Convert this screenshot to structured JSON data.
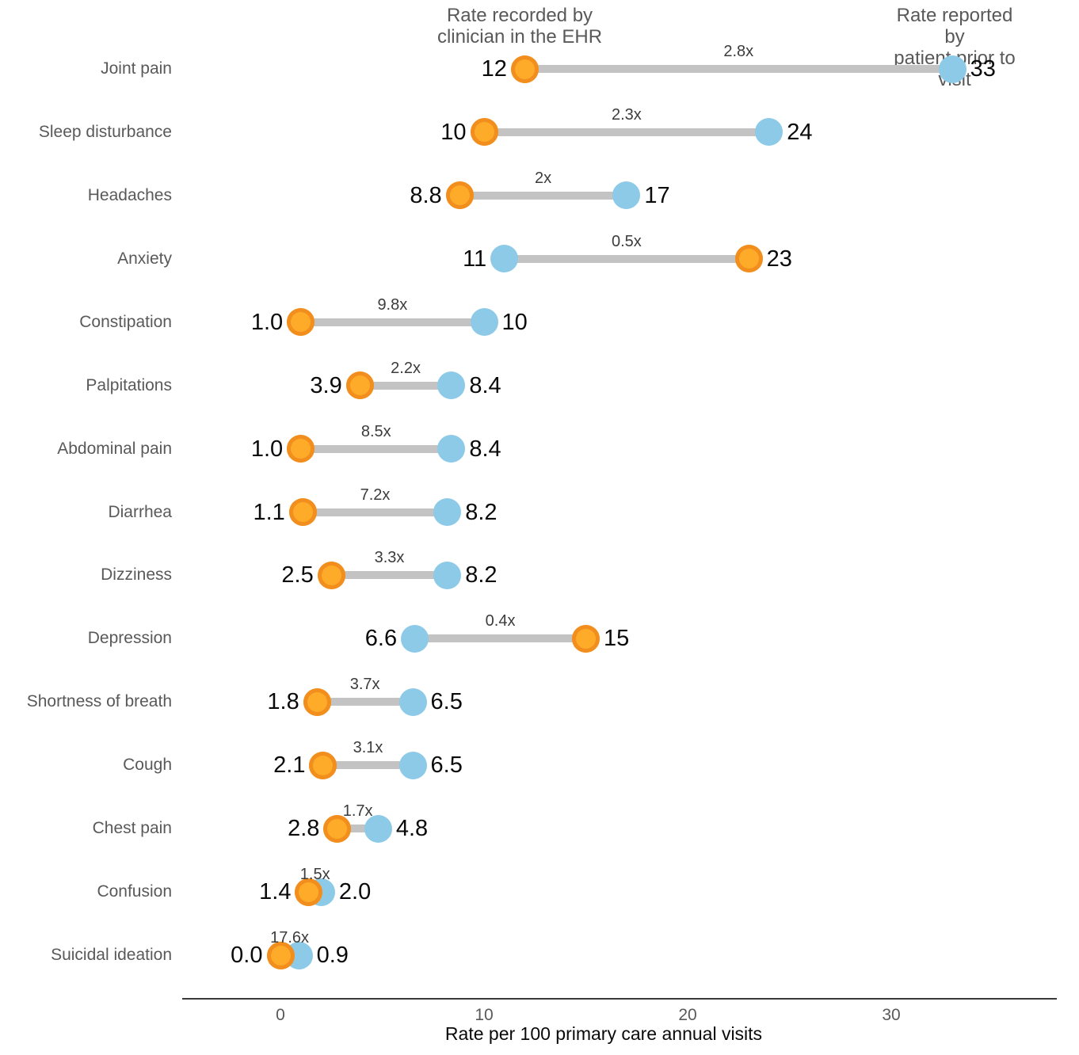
{
  "header": {
    "left": "Rate recorded by\nclinician in the EHR",
    "right": "Rate reported by\npatient prior to visit"
  },
  "chart_data": {
    "type": "dumbbell",
    "title": "",
    "xlabel": "Rate per 100 primary care annual visits",
    "ylabel": "",
    "x_ticks": [
      "0",
      "10",
      "20",
      "30"
    ],
    "x_tick_values": [
      0,
      10,
      20,
      30
    ],
    "xlim": [
      -4.8,
      38.2
    ],
    "grid": false,
    "legend_position": "column headers above first row",
    "series": [
      {
        "name": "Rate recorded by clinician in the EHR",
        "key": "clinician",
        "color": "#F28E1D"
      },
      {
        "name": "Rate reported by patient prior to visit",
        "key": "patient",
        "color": "#8CCAE7"
      }
    ],
    "rows": [
      {
        "label": "Joint pain",
        "clinician": 12,
        "clinician_display": "12",
        "patient": 33,
        "patient_display": "33",
        "ratio": "2.8x"
      },
      {
        "label": "Sleep disturbance",
        "clinician": 10,
        "clinician_display": "10",
        "patient": 24,
        "patient_display": "24",
        "ratio": "2.3x"
      },
      {
        "label": "Headaches",
        "clinician": 8.8,
        "clinician_display": "8.8",
        "patient": 17,
        "patient_display": "17",
        "ratio": "2x"
      },
      {
        "label": "Anxiety",
        "clinician": 23,
        "clinician_display": "23",
        "patient": 11,
        "patient_display": "11",
        "ratio": "0.5x"
      },
      {
        "label": "Constipation",
        "clinician": 1.0,
        "clinician_display": "1.0",
        "patient": 10,
        "patient_display": "10",
        "ratio": "9.8x"
      },
      {
        "label": "Palpitations",
        "clinician": 3.9,
        "clinician_display": "3.9",
        "patient": 8.4,
        "patient_display": "8.4",
        "ratio": "2.2x"
      },
      {
        "label": "Abdominal pain",
        "clinician": 1.0,
        "clinician_display": "1.0",
        "patient": 8.4,
        "patient_display": "8.4",
        "ratio": "8.5x"
      },
      {
        "label": "Diarrhea",
        "clinician": 1.1,
        "clinician_display": "1.1",
        "patient": 8.2,
        "patient_display": "8.2",
        "ratio": "7.2x"
      },
      {
        "label": "Dizziness",
        "clinician": 2.5,
        "clinician_display": "2.5",
        "patient": 8.2,
        "patient_display": "8.2",
        "ratio": "3.3x"
      },
      {
        "label": "Depression",
        "clinician": 15,
        "clinician_display": "15",
        "patient": 6.6,
        "patient_display": "6.6",
        "ratio": "0.4x"
      },
      {
        "label": "Shortness of breath",
        "clinician": 1.8,
        "clinician_display": "1.8",
        "patient": 6.5,
        "patient_display": "6.5",
        "ratio": "3.7x"
      },
      {
        "label": "Cough",
        "clinician": 2.1,
        "clinician_display": "2.1",
        "patient": 6.5,
        "patient_display": "6.5",
        "ratio": "3.1x"
      },
      {
        "label": "Chest pain",
        "clinician": 2.8,
        "clinician_display": "2.8",
        "patient": 4.8,
        "patient_display": "4.8",
        "ratio": "1.7x"
      },
      {
        "label": "Confusion",
        "clinician": 1.4,
        "clinician_display": "1.4",
        "patient": 2.0,
        "patient_display": "2.0",
        "ratio": "1.5x"
      },
      {
        "label": "Suicidal ideation",
        "clinician": 0.0,
        "clinician_display": "0.0",
        "patient": 0.9,
        "patient_display": "0.9",
        "ratio": "17.6x"
      }
    ],
    "colors": {
      "clinician_fill": "#FDAB28",
      "clinician_ring": "#F28E1D",
      "patient_fill": "#8CCAE7",
      "connector": "#C3C3C3",
      "axis_line": "#3a3a3a",
      "label_gray": "#595959",
      "value_black": "#0a0a0a"
    }
  }
}
